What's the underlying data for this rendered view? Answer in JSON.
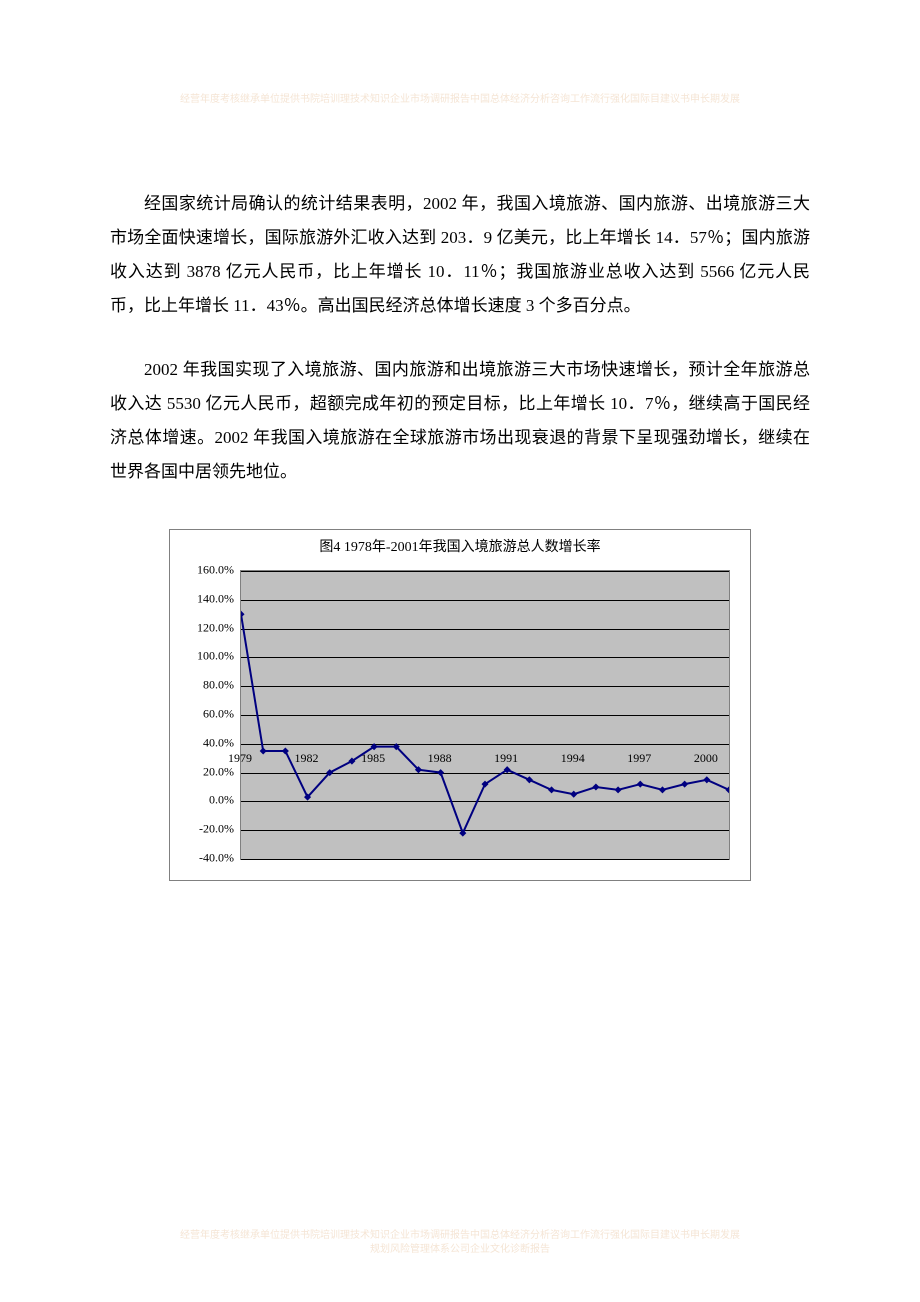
{
  "header_watermark": "经营年度考核继承单位提供书院培训理技术知识企业市场调研报告中国总体经济分析咨询工作流行强化国际目建议书申长期发展",
  "footer_watermark_line1": "经营年度考核继承单位提供书院培训理技术知识企业市场调研报告中国总体经济分析咨询工作流行强化国际目建议书申长期发展",
  "footer_watermark_line2": "规划风险管理体系公司企业文化诊断报告",
  "paragraph1": "经国家统计局确认的统计结果表明，2002 年，我国入境旅游、国内旅游、出境旅游三大市场全面快速增长，国际旅游外汇收入达到 203．9 亿美元，比上年增长 14．57％；国内旅游收入达到 3878 亿元人民币，比上年增长 10．11％；我国旅游业总收入达到 5566 亿元人民币，比上年增长 11．43％。高出国民经济总体增长速度 3 个多百分点。",
  "paragraph2": "2002 年我国实现了入境旅游、国内旅游和出境旅游三大市场快速增长，预计全年旅游总收入达 5530 亿元人民币，超额完成年初的预定目标，比上年增长 10．7％，继续高于国民经济总体增速。2002 年我国入境旅游在全球旅游市场出现衰退的背景下呈现强劲增长，继续在世界各国中居领先地位。",
  "chart": {
    "type": "line",
    "title": "图4 1978年-2001年我国入境旅游总人数增长率",
    "years": [
      1979,
      1980,
      1981,
      1982,
      1983,
      1984,
      1985,
      1986,
      1987,
      1988,
      1989,
      1990,
      1991,
      1992,
      1993,
      1994,
      1995,
      1996,
      1997,
      1998,
      1999,
      2000,
      2001
    ],
    "values": [
      130,
      35,
      35,
      3,
      20,
      28,
      38,
      38,
      22,
      20,
      -22,
      12,
      22,
      15,
      8,
      5,
      10,
      8,
      12,
      8,
      12,
      15,
      8
    ],
    "ymin": -40,
    "ymax": 160,
    "ystep": 20,
    "y_labels": [
      "160.0%",
      "140.0%",
      "120.0%",
      "100.0%",
      "80.0%",
      "60.0%",
      "40.0%",
      "20.0%",
      "0.0%",
      "-20.0%",
      "-40.0%"
    ],
    "x_labels": [
      {
        "year": 1979,
        "label": "1979"
      },
      {
        "year": 1982,
        "label": "1982"
      },
      {
        "year": 1985,
        "label": "1985"
      },
      {
        "year": 1988,
        "label": "1988"
      },
      {
        "year": 1991,
        "label": "1991"
      },
      {
        "year": 1994,
        "label": "1994"
      },
      {
        "year": 1997,
        "label": "1997"
      },
      {
        "year": 2000,
        "label": "2000"
      }
    ],
    "line_color": "#000080",
    "marker_color": "#000080",
    "marker_size": 5,
    "line_width": 2,
    "plot_bg": "#c0c0c0",
    "grid_color": "#000000",
    "chart_border": "#808080",
    "title_fontsize": 14,
    "label_fontsize": 12
  }
}
